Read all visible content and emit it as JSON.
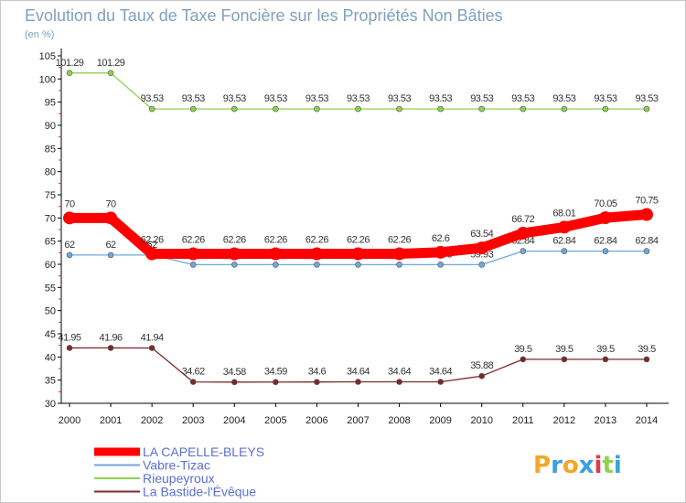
{
  "chart_data": {
    "type": "line",
    "title": "Evolution du Taux de Taxe Foncière sur les Propriétés Non Bâties",
    "ylabel": "(en %)",
    "xlabel": "",
    "ylim": [
      30,
      105
    ],
    "yticks": [
      30,
      35,
      40,
      45,
      50,
      55,
      60,
      65,
      70,
      75,
      80,
      85,
      90,
      95,
      100,
      105
    ],
    "grid": false,
    "legend": "bottom-left",
    "x": [
      2000,
      2001,
      2002,
      2003,
      2004,
      2005,
      2006,
      2007,
      2008,
      2009,
      2010,
      2011,
      2012,
      2013,
      2014
    ],
    "series": [
      {
        "name": "LA CAPELLE-BLEYS",
        "color": "#ff0000",
        "values": [
          70,
          70,
          62.26,
          62.26,
          62.26,
          62.26,
          62.26,
          62.26,
          62.26,
          62.6,
          63.54,
          66.72,
          68.01,
          70.05,
          70.75
        ],
        "labels": [
          "70",
          "70",
          "62.26",
          "62.26",
          "62.26",
          "62.26",
          "62.26",
          "62.26",
          "62.26",
          "62.6",
          "63.54",
          "66.72",
          "68.01",
          "70.05",
          "70.75"
        ]
      },
      {
        "name": "Vabre-Tizac",
        "color": "#6fa8dc",
        "values": [
          62,
          62,
          62,
          59.93,
          59.93,
          59.93,
          59.93,
          59.93,
          59.93,
          59.93,
          59.93,
          62.84,
          62.84,
          62.84,
          62.84
        ],
        "labels": [
          "62",
          "62",
          "62",
          "59.93",
          "59.93",
          "59.93",
          "59.93",
          "59.93",
          "59.93",
          "59.93",
          "59.93",
          "62.84",
          "62.84",
          "62.84",
          "62.84"
        ]
      },
      {
        "name": "Rieupeyroux",
        "color": "#8fd14f",
        "values": [
          101.29,
          101.29,
          93.53,
          93.53,
          93.53,
          93.53,
          93.53,
          93.53,
          93.53,
          93.53,
          93.53,
          93.53,
          93.53,
          93.53,
          93.53
        ],
        "labels": [
          "101.29",
          "101.29",
          "93.53",
          "93.53",
          "93.53",
          "93.53",
          "93.53",
          "93.53",
          "93.53",
          "93.53",
          "93.53",
          "93.53",
          "93.53",
          "93.53",
          "93.53"
        ]
      },
      {
        "name": "La Bastide-l'Évêque",
        "color": "#7b2a2a",
        "values": [
          41.95,
          41.96,
          41.94,
          34.62,
          34.58,
          34.59,
          34.6,
          34.64,
          34.64,
          34.64,
          35.88,
          39.5,
          39.5,
          39.5,
          39.5
        ],
        "labels": [
          "41.95",
          "41.96",
          "41.94",
          "34.62",
          "34.58",
          "34.59",
          "34.6",
          "34.64",
          "34.64",
          "34.64",
          "35.88",
          "39.5",
          "39.5",
          "39.5",
          "39.5"
        ]
      }
    ]
  },
  "logo": {
    "text": "Proxiti"
  },
  "colors": {
    "title": "#7fa0c0",
    "axis": "#000000",
    "tick_marks": "#cc3333",
    "legend_text": "#5b6fd6"
  }
}
